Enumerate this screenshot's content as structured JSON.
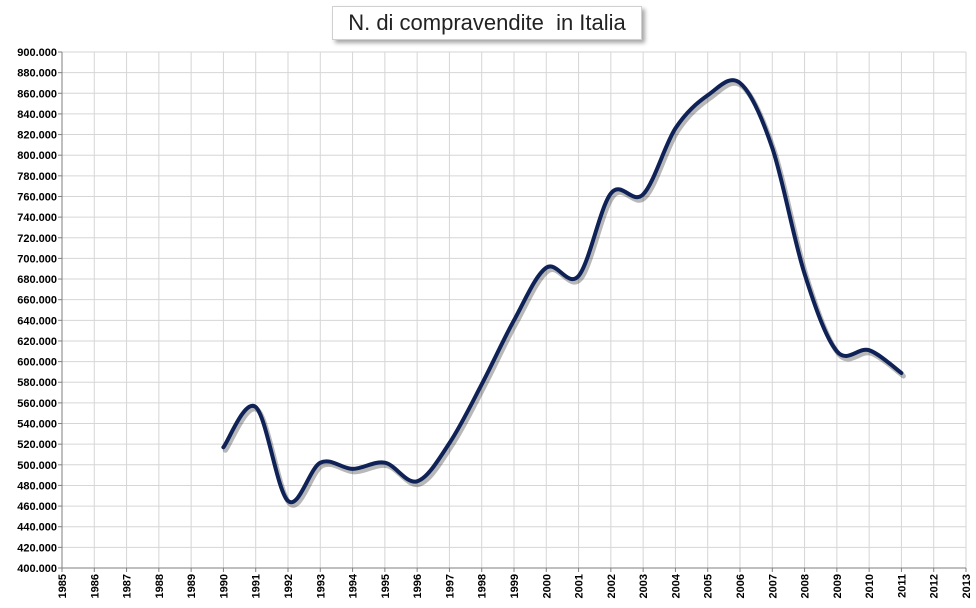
{
  "chart_data": {
    "type": "line",
    "title": "N. di compravendite  in Italia",
    "xlabel": "",
    "ylabel": "",
    "x_categories": [
      "1985",
      "1986",
      "1987",
      "1988",
      "1989",
      "1990",
      "1991",
      "1992",
      "1993",
      "1994",
      "1995",
      "1996",
      "1997",
      "1998",
      "1999",
      "2000",
      "2001",
      "2002",
      "2003",
      "2004",
      "2005",
      "2006",
      "2007",
      "2008",
      "2009",
      "2010",
      "2011",
      "2012",
      "2013"
    ],
    "y_tick_labels": [
      "400.000",
      "420.000",
      "440.000",
      "460.000",
      "480.000",
      "500.000",
      "520.000",
      "540.000",
      "560.000",
      "580.000",
      "600.000",
      "620.000",
      "640.000",
      "660.000",
      "680.000",
      "700.000",
      "720.000",
      "740.000",
      "760.000",
      "780.000",
      "800.000",
      "820.000",
      "840.000",
      "860.000",
      "880.000",
      "900.000"
    ],
    "ylim": [
      400000,
      900000
    ],
    "grid": true,
    "line_color": "#0f2257",
    "series": [
      {
        "x": [
          "1990",
          "1991",
          "1992",
          "1993",
          "1994",
          "1995",
          "1996",
          "1997",
          "1998",
          "1999",
          "2000",
          "2001",
          "2002",
          "2003",
          "2004",
          "2005",
          "2006",
          "2007",
          "2008",
          "2009",
          "2010",
          "2011"
        ],
        "values": [
          517000,
          556000,
          465000,
          502000,
          496000,
          502000,
          484000,
          521000,
          578000,
          640000,
          691000,
          683000,
          763000,
          762000,
          826000,
          858000,
          870000,
          807000,
          685000,
          610000,
          611000,
          589000
        ]
      }
    ]
  }
}
